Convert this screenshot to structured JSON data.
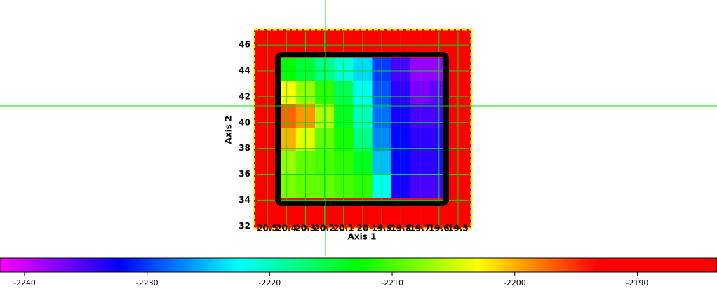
{
  "chart_data": {
    "type": "heatmap",
    "xlabel": "Axis 1",
    "ylabel": "Axis 2",
    "xlim": [
      20.57,
      19.43
    ],
    "ylim": [
      31.8,
      47.2
    ],
    "xticks": [
      {
        "value": 20.5,
        "label": "20.5"
      },
      {
        "value": 20.4,
        "label": "20.4"
      },
      {
        "value": 20.3,
        "label": "20.3"
      },
      {
        "value": 20.2,
        "label": "20.2"
      },
      {
        "value": 20.1,
        "label": "20.1"
      },
      20,
      {
        "value": 19.9,
        "label": "19.9"
      },
      {
        "value": 19.8,
        "label": "19.8"
      },
      {
        "value": 19.7,
        "label": "19.7"
      },
      {
        "value": 19.6,
        "label": "19.6"
      },
      {
        "value": 19.5,
        "label": "19.5"
      }
    ],
    "yticks": [
      32,
      34,
      36,
      38,
      40,
      42,
      44,
      46
    ],
    "grid": true,
    "grid_color": "#00e000",
    "x": [
      20.4,
      20.3,
      20.2,
      20.1,
      20.0,
      19.9,
      19.8,
      19.7,
      19.6
    ],
    "y": [
      44.1,
      42.3,
      40.5,
      38.7,
      36.9,
      35.1
    ],
    "z": [
      [
        -2213,
        -2215,
        -2218,
        -2221,
        -2224,
        -2230,
        -2235,
        -2238,
        -2238
      ],
      [
        -2203,
        -2207,
        -2211,
        -2216,
        -2222,
        -2229,
        -2234,
        -2237,
        -2236
      ],
      [
        -2197,
        -2199,
        -2206,
        -2214,
        -2220,
        -2228,
        -2233,
        -2235,
        -2235
      ],
      [
        -2200,
        -2204,
        -2209,
        -2212,
        -2218,
        -2227,
        -2232,
        -2234,
        -2234
      ],
      [
        -2207,
        -2209,
        -2210,
        -2211,
        -2214,
        -2225,
        -2232,
        -2234,
        -2234
      ],
      [
        -2208,
        -2209,
        -2209,
        -2210,
        -2211,
        -2222,
        -2233,
        -2235,
        -2235
      ]
    ],
    "clim": [
      -2242,
      -2183.5
    ],
    "colormap": [
      "#ff00ff",
      "#0000ff",
      "#00ffff",
      "#00ff00",
      "#ffff00",
      "#ff0000",
      "#ff0000"
    ],
    "cticks": [
      -2240,
      -2230,
      -2220,
      -2210,
      -2200,
      -2190
    ]
  }
}
